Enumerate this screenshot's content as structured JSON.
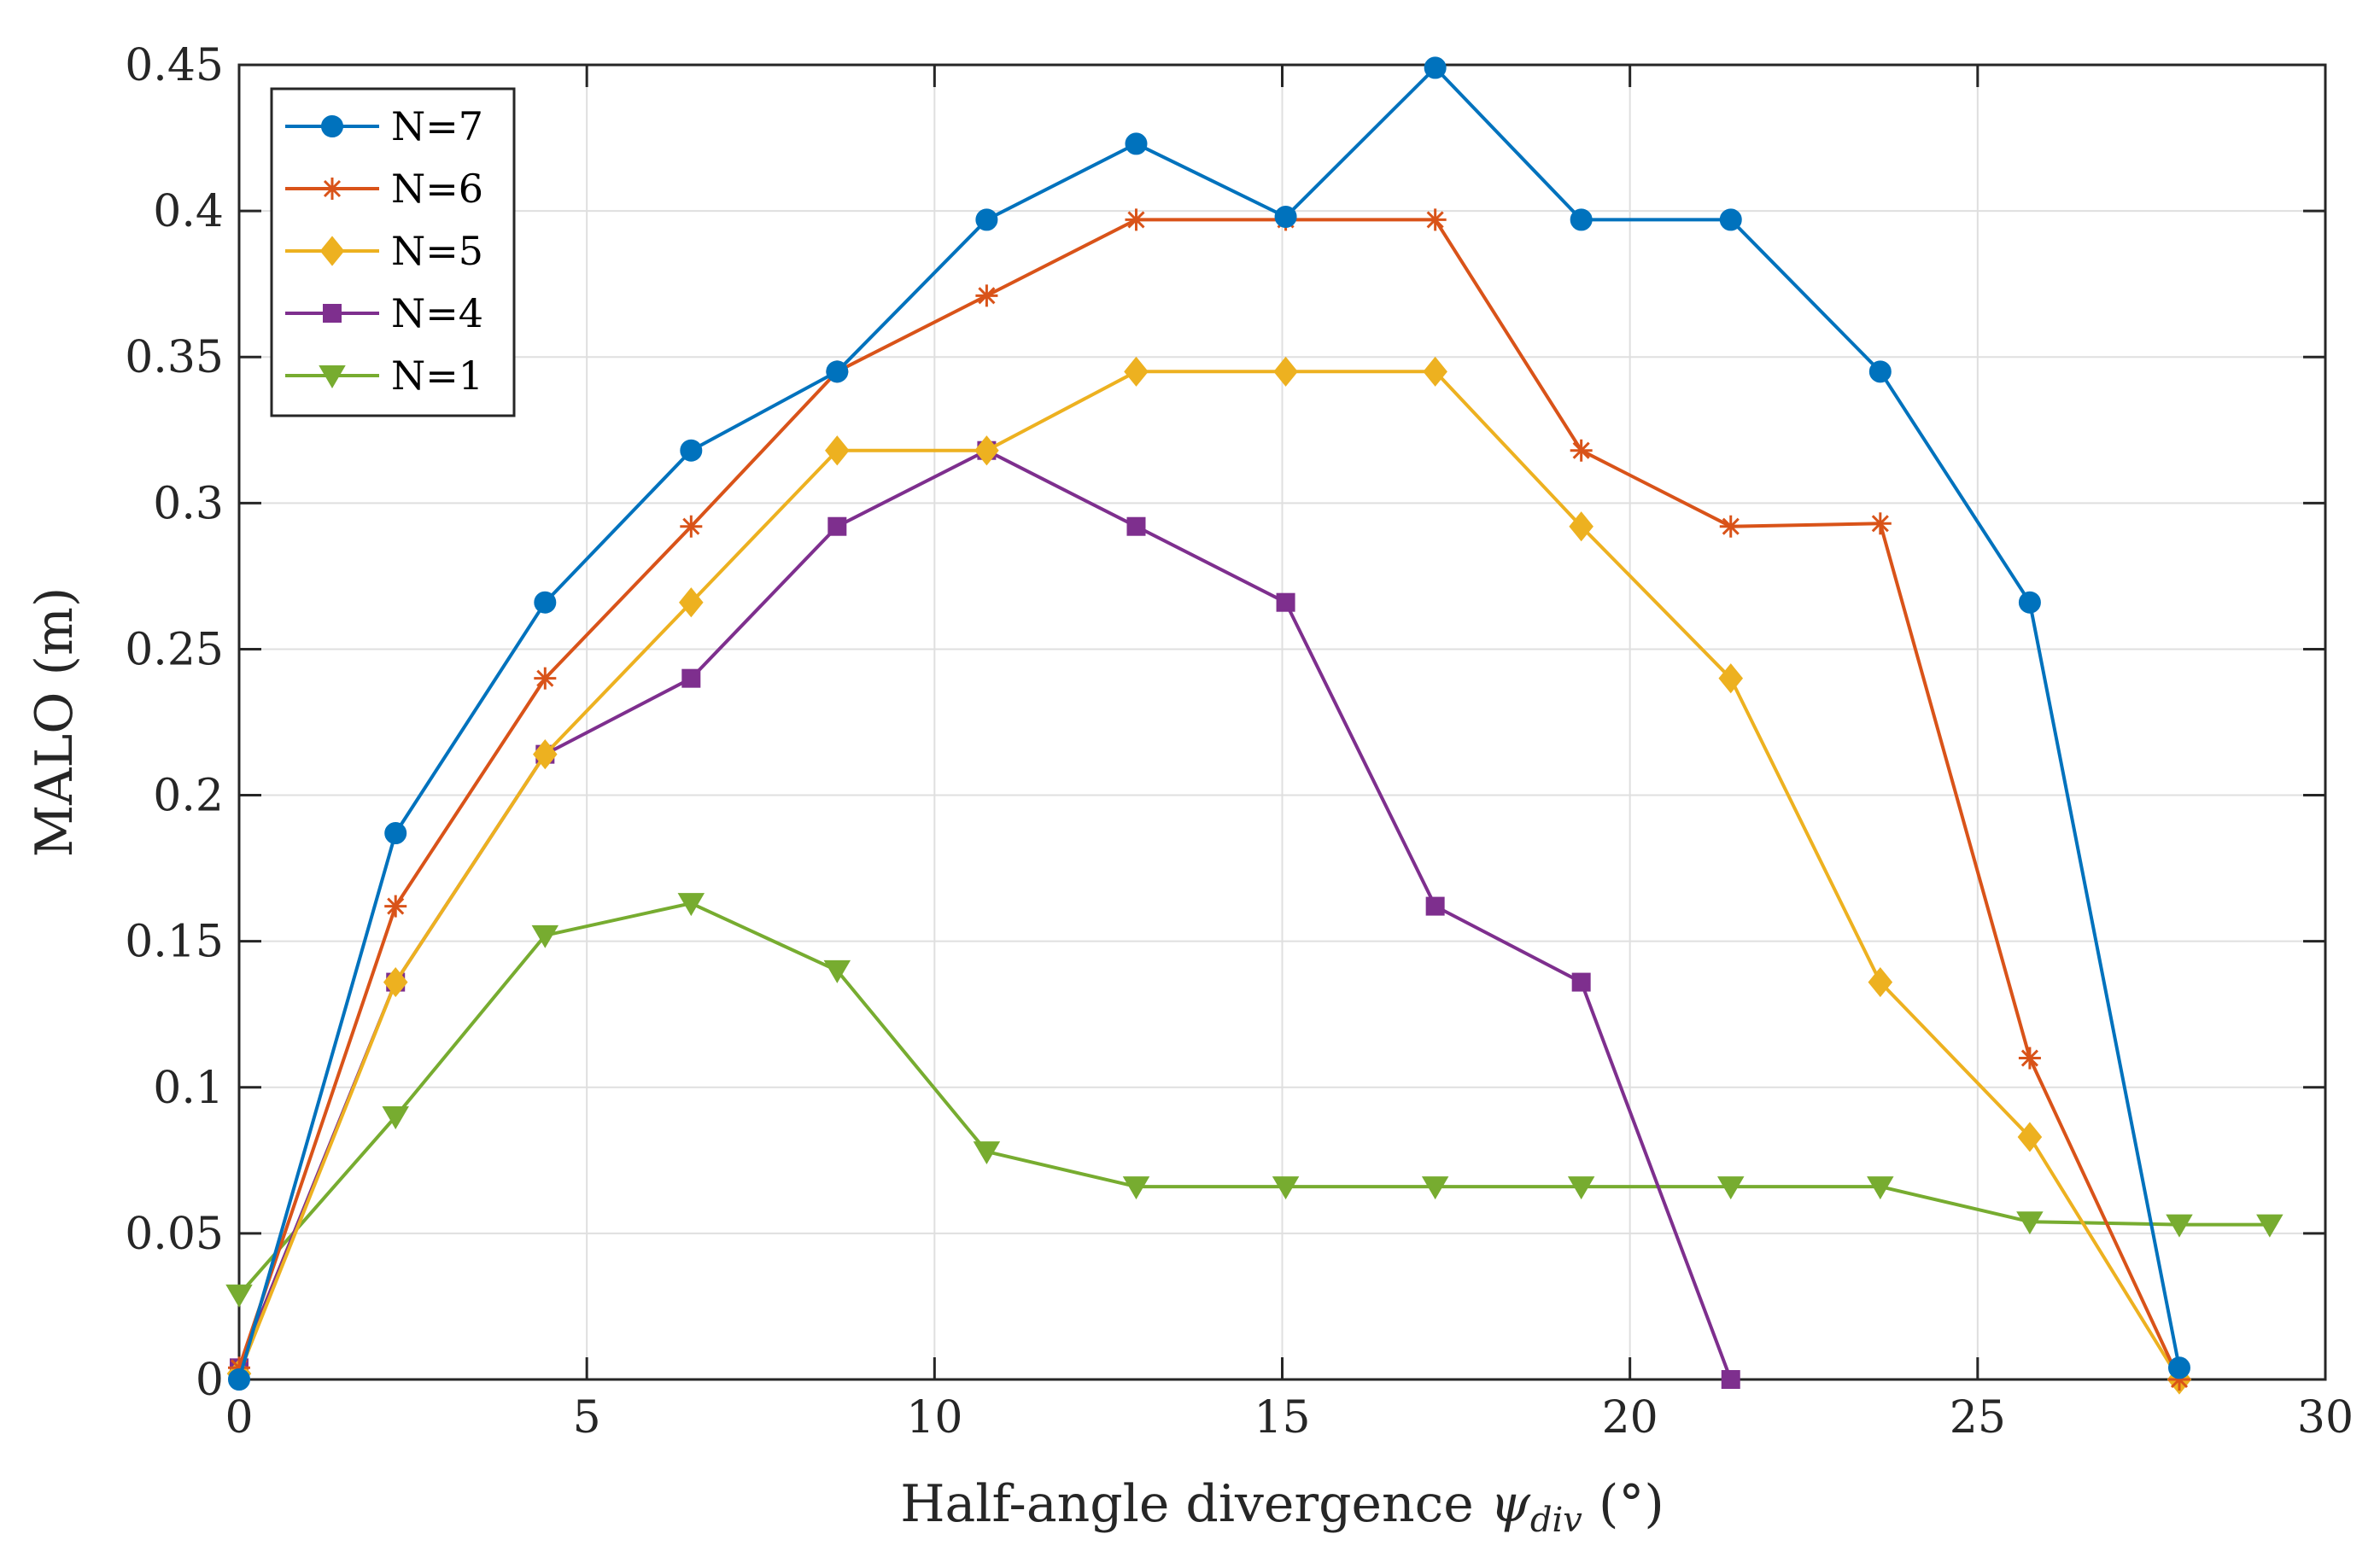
{
  "chart_data": {
    "type": "line",
    "title": "",
    "xlabel": {
      "main": "Half-angle divergence ",
      "symbol": "ψ",
      "subscript": "div",
      "unit": " (°)"
    },
    "ylabel": "MALO (m)",
    "xlim": [
      0,
      30
    ],
    "ylim": [
      0,
      0.45
    ],
    "xticks": [
      0,
      5,
      10,
      15,
      20,
      25,
      30
    ],
    "xtick_labels": [
      "0",
      "5",
      "10",
      "15",
      "20",
      "25",
      "30"
    ],
    "yticks": [
      0,
      0.05,
      0.1,
      0.15,
      0.2,
      0.25,
      0.3,
      0.35,
      0.4,
      0.45
    ],
    "ytick_labels": [
      "0",
      "0.05",
      "0.1",
      "0.15",
      "0.2",
      "0.25",
      "0.3",
      "0.35",
      "0.4",
      "0.45"
    ],
    "grid": true,
    "legend_position": "top-left",
    "series": [
      {
        "name": "N=7",
        "color": "#0072BD",
        "marker": "circle",
        "x": [
          0,
          2.25,
          4.4,
          6.5,
          8.6,
          10.75,
          12.9,
          15.05,
          17.2,
          19.3,
          21.45,
          23.6,
          25.75,
          27.9
        ],
        "values": [
          0,
          0.187,
          0.266,
          0.318,
          0.345,
          0.397,
          0.423,
          0.398,
          0.449,
          0.397,
          0.397,
          0.345,
          0.266,
          0.004
        ]
      },
      {
        "name": "N=6",
        "color": "#D95319",
        "marker": "asterisk",
        "x": [
          0,
          2.25,
          4.4,
          6.5,
          8.6,
          10.75,
          12.9,
          15.05,
          17.2,
          19.3,
          21.45,
          23.6,
          25.75,
          27.9
        ],
        "values": [
          0.004,
          0.162,
          0.24,
          0.292,
          0.345,
          0.371,
          0.397,
          0.397,
          0.397,
          0.318,
          0.292,
          0.293,
          0.11,
          0
        ]
      },
      {
        "name": "N=5",
        "color": "#EDB120",
        "marker": "diamond",
        "x": [
          0,
          2.25,
          4.4,
          6.5,
          8.6,
          10.75,
          12.9,
          15.05,
          17.2,
          19.3,
          21.45,
          23.6,
          25.75,
          27.9
        ],
        "values": [
          0.002,
          0.136,
          0.214,
          0.266,
          0.318,
          0.318,
          0.345,
          0.345,
          0.345,
          0.292,
          0.24,
          0.136,
          0.083,
          0
        ]
      },
      {
        "name": "N=4",
        "color": "#7E2F8E",
        "marker": "square",
        "x": [
          0,
          2.25,
          4.4,
          6.5,
          8.6,
          10.75,
          12.9,
          15.05,
          17.2,
          19.3,
          21.45
        ],
        "values": [
          0.004,
          0.136,
          0.214,
          0.24,
          0.292,
          0.318,
          0.292,
          0.266,
          0.162,
          0.136,
          0
        ]
      },
      {
        "name": "N=1",
        "color": "#77AC30",
        "marker": "triangle-down",
        "x": [
          0,
          2.25,
          4.4,
          6.5,
          8.6,
          10.75,
          12.9,
          15.05,
          17.2,
          19.3,
          21.45,
          23.6,
          25.75,
          27.9,
          29.2
        ],
        "values": [
          0.029,
          0.09,
          0.152,
          0.163,
          0.14,
          0.078,
          0.066,
          0.066,
          0.066,
          0.066,
          0.066,
          0.066,
          0.054,
          0.053,
          0.053
        ]
      }
    ]
  }
}
